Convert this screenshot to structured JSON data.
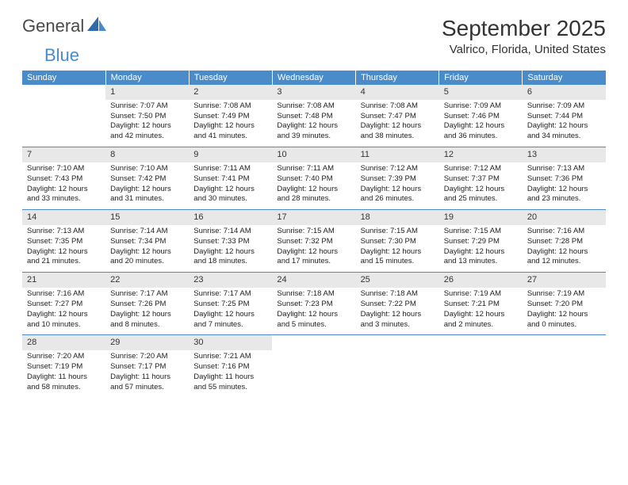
{
  "brand": {
    "part1": "General",
    "part2": "Blue"
  },
  "title": "September 2025",
  "location": "Valrico, Florida, United States",
  "colors": {
    "header_bg": "#4a8bc9",
    "header_text": "#ffffff",
    "daynum_bg": "#e8e8e8",
    "row_border": "#4a8bc9",
    "body_text": "#222222",
    "background": "#ffffff"
  },
  "typography": {
    "month_title_fontsize": 28,
    "location_fontsize": 15,
    "weekday_fontsize": 11,
    "daynum_fontsize": 11,
    "cell_fontsize": 9.5
  },
  "layout": {
    "columns": 7,
    "weeks": 5
  },
  "weekdays": [
    "Sunday",
    "Monday",
    "Tuesday",
    "Wednesday",
    "Thursday",
    "Friday",
    "Saturday"
  ],
  "weeks": [
    [
      null,
      {
        "n": "1",
        "sr": "Sunrise: 7:07 AM",
        "ss": "Sunset: 7:50 PM",
        "d1": "Daylight: 12 hours",
        "d2": "and 42 minutes."
      },
      {
        "n": "2",
        "sr": "Sunrise: 7:08 AM",
        "ss": "Sunset: 7:49 PM",
        "d1": "Daylight: 12 hours",
        "d2": "and 41 minutes."
      },
      {
        "n": "3",
        "sr": "Sunrise: 7:08 AM",
        "ss": "Sunset: 7:48 PM",
        "d1": "Daylight: 12 hours",
        "d2": "and 39 minutes."
      },
      {
        "n": "4",
        "sr": "Sunrise: 7:08 AM",
        "ss": "Sunset: 7:47 PM",
        "d1": "Daylight: 12 hours",
        "d2": "and 38 minutes."
      },
      {
        "n": "5",
        "sr": "Sunrise: 7:09 AM",
        "ss": "Sunset: 7:46 PM",
        "d1": "Daylight: 12 hours",
        "d2": "and 36 minutes."
      },
      {
        "n": "6",
        "sr": "Sunrise: 7:09 AM",
        "ss": "Sunset: 7:44 PM",
        "d1": "Daylight: 12 hours",
        "d2": "and 34 minutes."
      }
    ],
    [
      {
        "n": "7",
        "sr": "Sunrise: 7:10 AM",
        "ss": "Sunset: 7:43 PM",
        "d1": "Daylight: 12 hours",
        "d2": "and 33 minutes."
      },
      {
        "n": "8",
        "sr": "Sunrise: 7:10 AM",
        "ss": "Sunset: 7:42 PM",
        "d1": "Daylight: 12 hours",
        "d2": "and 31 minutes."
      },
      {
        "n": "9",
        "sr": "Sunrise: 7:11 AM",
        "ss": "Sunset: 7:41 PM",
        "d1": "Daylight: 12 hours",
        "d2": "and 30 minutes."
      },
      {
        "n": "10",
        "sr": "Sunrise: 7:11 AM",
        "ss": "Sunset: 7:40 PM",
        "d1": "Daylight: 12 hours",
        "d2": "and 28 minutes."
      },
      {
        "n": "11",
        "sr": "Sunrise: 7:12 AM",
        "ss": "Sunset: 7:39 PM",
        "d1": "Daylight: 12 hours",
        "d2": "and 26 minutes."
      },
      {
        "n": "12",
        "sr": "Sunrise: 7:12 AM",
        "ss": "Sunset: 7:37 PM",
        "d1": "Daylight: 12 hours",
        "d2": "and 25 minutes."
      },
      {
        "n": "13",
        "sr": "Sunrise: 7:13 AM",
        "ss": "Sunset: 7:36 PM",
        "d1": "Daylight: 12 hours",
        "d2": "and 23 minutes."
      }
    ],
    [
      {
        "n": "14",
        "sr": "Sunrise: 7:13 AM",
        "ss": "Sunset: 7:35 PM",
        "d1": "Daylight: 12 hours",
        "d2": "and 21 minutes."
      },
      {
        "n": "15",
        "sr": "Sunrise: 7:14 AM",
        "ss": "Sunset: 7:34 PM",
        "d1": "Daylight: 12 hours",
        "d2": "and 20 minutes."
      },
      {
        "n": "16",
        "sr": "Sunrise: 7:14 AM",
        "ss": "Sunset: 7:33 PM",
        "d1": "Daylight: 12 hours",
        "d2": "and 18 minutes."
      },
      {
        "n": "17",
        "sr": "Sunrise: 7:15 AM",
        "ss": "Sunset: 7:32 PM",
        "d1": "Daylight: 12 hours",
        "d2": "and 17 minutes."
      },
      {
        "n": "18",
        "sr": "Sunrise: 7:15 AM",
        "ss": "Sunset: 7:30 PM",
        "d1": "Daylight: 12 hours",
        "d2": "and 15 minutes."
      },
      {
        "n": "19",
        "sr": "Sunrise: 7:15 AM",
        "ss": "Sunset: 7:29 PM",
        "d1": "Daylight: 12 hours",
        "d2": "and 13 minutes."
      },
      {
        "n": "20",
        "sr": "Sunrise: 7:16 AM",
        "ss": "Sunset: 7:28 PM",
        "d1": "Daylight: 12 hours",
        "d2": "and 12 minutes."
      }
    ],
    [
      {
        "n": "21",
        "sr": "Sunrise: 7:16 AM",
        "ss": "Sunset: 7:27 PM",
        "d1": "Daylight: 12 hours",
        "d2": "and 10 minutes."
      },
      {
        "n": "22",
        "sr": "Sunrise: 7:17 AM",
        "ss": "Sunset: 7:26 PM",
        "d1": "Daylight: 12 hours",
        "d2": "and 8 minutes."
      },
      {
        "n": "23",
        "sr": "Sunrise: 7:17 AM",
        "ss": "Sunset: 7:25 PM",
        "d1": "Daylight: 12 hours",
        "d2": "and 7 minutes."
      },
      {
        "n": "24",
        "sr": "Sunrise: 7:18 AM",
        "ss": "Sunset: 7:23 PM",
        "d1": "Daylight: 12 hours",
        "d2": "and 5 minutes."
      },
      {
        "n": "25",
        "sr": "Sunrise: 7:18 AM",
        "ss": "Sunset: 7:22 PM",
        "d1": "Daylight: 12 hours",
        "d2": "and 3 minutes."
      },
      {
        "n": "26",
        "sr": "Sunrise: 7:19 AM",
        "ss": "Sunset: 7:21 PM",
        "d1": "Daylight: 12 hours",
        "d2": "and 2 minutes."
      },
      {
        "n": "27",
        "sr": "Sunrise: 7:19 AM",
        "ss": "Sunset: 7:20 PM",
        "d1": "Daylight: 12 hours",
        "d2": "and 0 minutes."
      }
    ],
    [
      {
        "n": "28",
        "sr": "Sunrise: 7:20 AM",
        "ss": "Sunset: 7:19 PM",
        "d1": "Daylight: 11 hours",
        "d2": "and 58 minutes."
      },
      {
        "n": "29",
        "sr": "Sunrise: 7:20 AM",
        "ss": "Sunset: 7:17 PM",
        "d1": "Daylight: 11 hours",
        "d2": "and 57 minutes."
      },
      {
        "n": "30",
        "sr": "Sunrise: 7:21 AM",
        "ss": "Sunset: 7:16 PM",
        "d1": "Daylight: 11 hours",
        "d2": "and 55 minutes."
      },
      null,
      null,
      null,
      null
    ]
  ]
}
